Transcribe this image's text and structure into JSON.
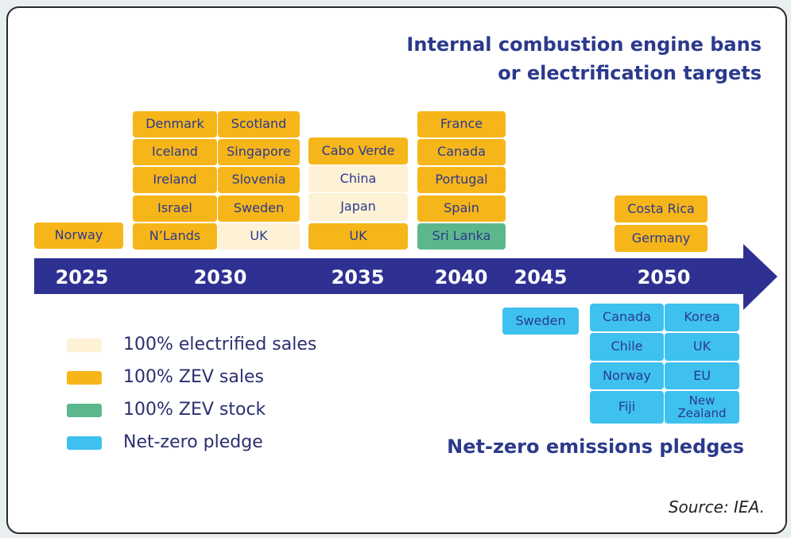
{
  "title": [
    "Internal combustion engine bans",
    "or electrification targets"
  ],
  "years": [
    "2025",
    "2030",
    "2035",
    "2040",
    "2045",
    "2050"
  ],
  "timeline_color": "#2e3192",
  "targets": [
    {
      "label": "Norway",
      "color": "#f6b519"
    },
    {
      "label": "Denmark",
      "color": "#f6b519"
    },
    {
      "label": "Scotland",
      "color": "#f6b519"
    },
    {
      "label": "Iceland",
      "color": "#f6b519"
    },
    {
      "label": "Singapore",
      "color": "#f6b519"
    },
    {
      "label": "Ireland",
      "color": "#f6b519"
    },
    {
      "label": "Slovenia",
      "color": "#f6b519"
    },
    {
      "label": "Israel",
      "color": "#f6b519"
    },
    {
      "label": "Sweden",
      "color": "#f6b519"
    },
    {
      "label": "N’Lands",
      "color": "#f6b519"
    },
    {
      "label": "UK",
      "color": "#fdf1d6"
    },
    {
      "label": "Cabo Verde",
      "color": "#f6b519"
    },
    {
      "label": "China",
      "color": "#fdf1d6"
    },
    {
      "label": "Japan",
      "color": "#fdf1d6"
    },
    {
      "label": "UK",
      "color": "#f6b519"
    },
    {
      "label": "France",
      "color": "#f6b519"
    },
    {
      "label": "Canada",
      "color": "#f6b519"
    },
    {
      "label": "Portugal",
      "color": "#f6b519"
    },
    {
      "label": "Spain",
      "color": "#f6b519"
    },
    {
      "label": "Sri Lanka",
      "color": "#5cb88c"
    },
    {
      "label": "Costa Rica",
      "color": "#f6b519"
    },
    {
      "label": "Germany",
      "color": "#f6b519"
    }
  ],
  "pledges": [
    {
      "label": "Sweden",
      "color": "#3ec1ee"
    },
    {
      "label": "Canada",
      "color": "#3ec1ee"
    },
    {
      "label": "Korea",
      "color": "#3ec1ee"
    },
    {
      "label": "Chile",
      "color": "#3ec1ee"
    },
    {
      "label": "UK",
      "color": "#3ec1ee"
    },
    {
      "label": "Norway",
      "color": "#3ec1ee"
    },
    {
      "label": "EU",
      "color": "#3ec1ee"
    },
    {
      "label": "Fiji",
      "color": "#3ec1ee"
    },
    {
      "label": "New Zealand",
      "color": "#3ec1ee"
    }
  ],
  "legend": [
    {
      "label": "100% electrified sales",
      "color": "#fdf1d6"
    },
    {
      "label": "100% ZEV sales",
      "color": "#f6b519"
    },
    {
      "label": "100% ZEV stock",
      "color": "#5cb88c"
    },
    {
      "label": "Net-zero pledge",
      "color": "#3ec1ee"
    }
  ],
  "pledges_title": "Net-zero emissions pledges",
  "source": "Source: IEA."
}
